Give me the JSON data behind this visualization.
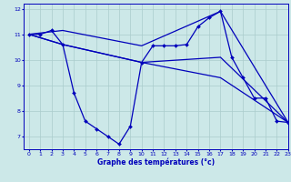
{
  "xlabel": "Graphe des températures (°c)",
  "xlim": [
    -0.5,
    23
  ],
  "ylim": [
    6.5,
    12.2
  ],
  "yticks": [
    7,
    8,
    9,
    10,
    11,
    12
  ],
  "xticks": [
    0,
    1,
    2,
    3,
    4,
    5,
    6,
    7,
    8,
    9,
    10,
    11,
    12,
    13,
    14,
    15,
    16,
    17,
    18,
    19,
    20,
    21,
    22,
    23
  ],
  "background_color": "#cce8e8",
  "grid_color": "#aacccc",
  "line_color": "#0000bb",
  "series": [
    {
      "x": [
        0,
        1,
        2,
        3,
        4,
        5,
        6,
        7,
        8,
        9,
        10,
        11,
        12,
        13,
        14,
        15,
        16,
        17,
        18,
        19,
        20,
        21,
        22,
        23
      ],
      "y": [
        11.0,
        11.0,
        11.15,
        10.6,
        8.7,
        7.6,
        7.3,
        7.0,
        6.7,
        7.4,
        9.9,
        10.55,
        10.55,
        10.55,
        10.6,
        11.3,
        11.65,
        11.9,
        10.1,
        9.3,
        8.5,
        8.5,
        7.6,
        7.55
      ],
      "marker": true,
      "linewidth": 0.9
    },
    {
      "x": [
        0,
        3,
        10,
        17,
        23
      ],
      "y": [
        11.0,
        11.15,
        10.55,
        11.9,
        7.55
      ],
      "marker": false,
      "linewidth": 0.9
    },
    {
      "x": [
        0,
        3,
        10,
        17,
        23
      ],
      "y": [
        11.0,
        10.6,
        9.9,
        10.1,
        7.55
      ],
      "marker": false,
      "linewidth": 0.9
    },
    {
      "x": [
        0,
        3,
        10,
        17,
        23
      ],
      "y": [
        11.0,
        10.6,
        9.9,
        9.3,
        7.55
      ],
      "marker": false,
      "linewidth": 0.9
    }
  ]
}
